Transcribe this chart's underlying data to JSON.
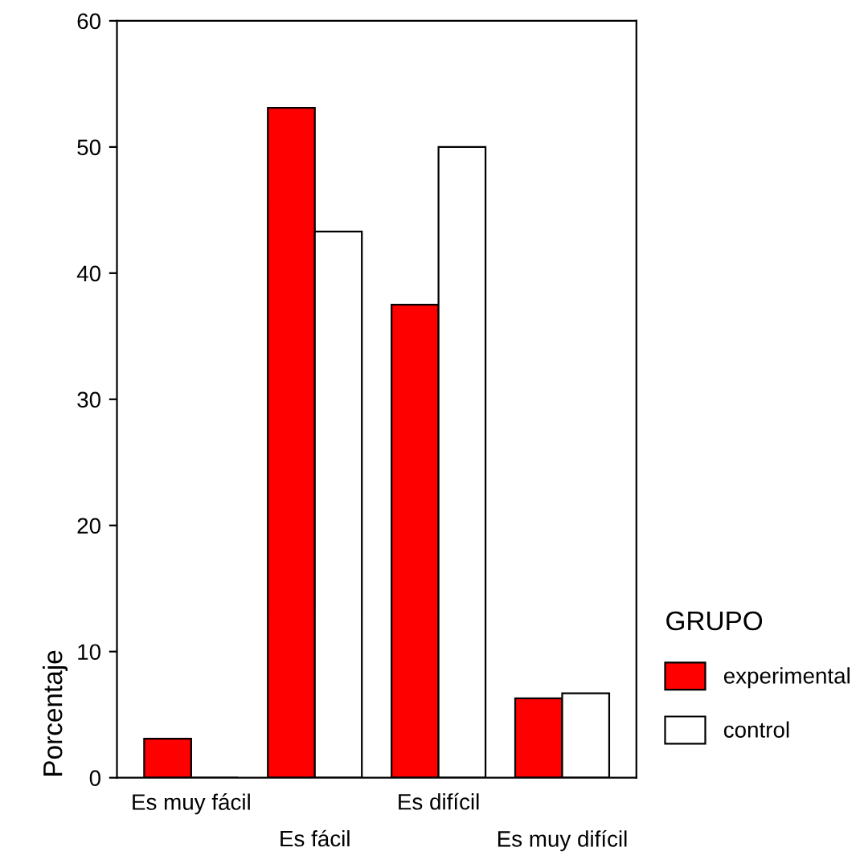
{
  "chart_data": {
    "type": "bar",
    "ylabel": "Porcentaje",
    "legend_title": "GRUPO",
    "categories": [
      "Es muy fácil",
      "Es fácil",
      "Es difícil",
      "Es muy difícil"
    ],
    "series": [
      {
        "name": "experimental",
        "color": "#ff0000",
        "values": [
          3.1,
          53.1,
          37.5,
          6.3
        ]
      },
      {
        "name": "control",
        "color": "#ffffff",
        "values": [
          0,
          43.3,
          50.0,
          6.7
        ]
      }
    ],
    "ylim": [
      0,
      60
    ],
    "yticks": [
      0,
      10,
      20,
      30,
      40,
      50,
      60
    ],
    "grid": false,
    "legend": "right"
  }
}
